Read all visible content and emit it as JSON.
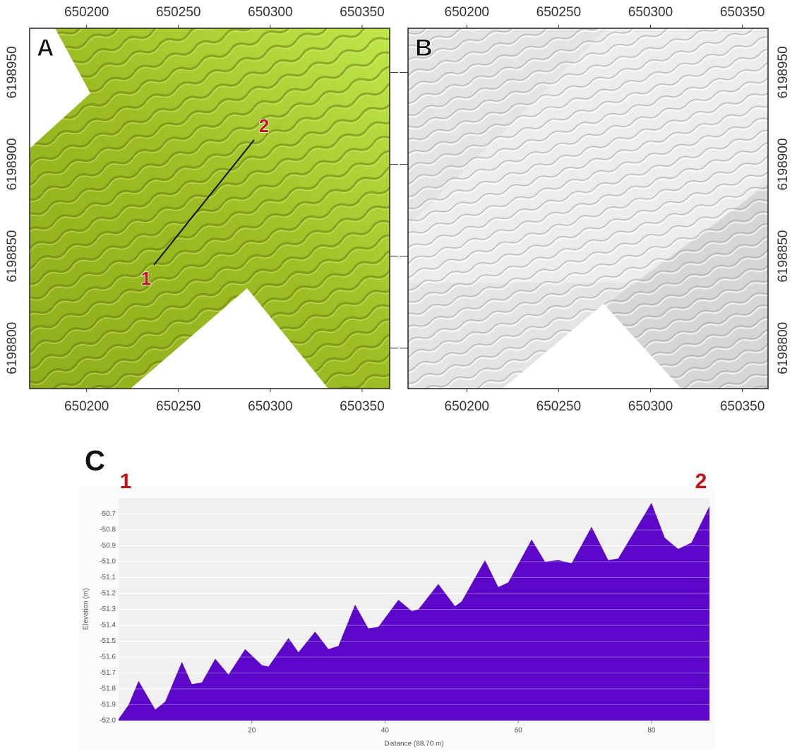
{
  "chart_data": [
    {
      "type": "map",
      "panel_label": "A",
      "xlim": [
        650169,
        650365
      ],
      "ylim": [
        6198778,
        6198974
      ],
      "xticks": [
        650200,
        650250,
        650300,
        650350
      ],
      "yticks": [
        6198800,
        6198850,
        6198900,
        6198950
      ],
      "point_labels": [
        "1",
        "2"
      ]
    },
    {
      "type": "map",
      "panel_label": "B",
      "xlim": [
        650168,
        650364
      ],
      "ylim": [
        6198778,
        6198974
      ],
      "xticks": [
        650200,
        650250,
        650300,
        650350
      ],
      "yticks": [
        6198800,
        6198850,
        6198900,
        6198950
      ]
    },
    {
      "type": "area",
      "panel_label": "C",
      "start_label": "1",
      "end_label": "2",
      "ylabel": "Elevation (m)",
      "xlabel": "Distance (88.70 m)",
      "color": "#5b06c9",
      "grid": true,
      "xlim": [
        0,
        88.7
      ],
      "ylim": [
        -52.0,
        -50.6
      ],
      "xticks": [
        20,
        40,
        60,
        80
      ],
      "yticks": [
        {
          "value": -50.7,
          "label": "-50.7"
        },
        {
          "value": -50.8,
          "label": "-50.8"
        },
        {
          "value": -50.9,
          "label": "-50.9"
        },
        {
          "value": -51.0,
          "label": "-51.0"
        },
        {
          "value": -51.1,
          "label": "-51.1"
        },
        {
          "value": -51.2,
          "label": "-51.2"
        },
        {
          "value": -51.3,
          "label": "-51.3"
        },
        {
          "value": -51.4,
          "label": "-51.4"
        },
        {
          "value": -51.5,
          "label": "-51.5"
        },
        {
          "value": -51.6,
          "label": "-51.6"
        },
        {
          "value": -51.7,
          "label": "-51.7"
        },
        {
          "value": -51.8,
          "label": "-51.8"
        },
        {
          "value": -51.9,
          "label": "-51.9"
        },
        {
          "value": -52.0,
          "label": "-52.0"
        }
      ],
      "x": [
        0,
        1.5,
        3,
        5.5,
        7,
        9.5,
        11,
        12.5,
        14.5,
        16.5,
        19,
        21.5,
        22.5,
        25.5,
        27,
        29.5,
        31.5,
        33,
        35.5,
        37.5,
        39,
        42,
        44,
        45,
        48,
        50.5,
        51.5,
        55,
        57,
        58.5,
        62,
        64,
        66,
        68,
        71,
        73.5,
        75,
        80,
        82,
        84,
        86,
        88.7
      ],
      "values": [
        -51.99,
        -51.9,
        -51.75,
        -51.93,
        -51.88,
        -51.63,
        -51.77,
        -51.76,
        -51.61,
        -51.71,
        -51.55,
        -51.65,
        -51.66,
        -51.48,
        -51.57,
        -51.44,
        -51.55,
        -51.53,
        -51.27,
        -51.42,
        -51.41,
        -51.24,
        -51.31,
        -51.3,
        -51.14,
        -51.28,
        -51.25,
        -50.99,
        -51.16,
        -51.13,
        -50.86,
        -51.0,
        -50.99,
        -51.01,
        -50.78,
        -50.99,
        -50.98,
        -50.63,
        -50.85,
        -50.92,
        -50.88,
        -50.65
      ]
    }
  ]
}
